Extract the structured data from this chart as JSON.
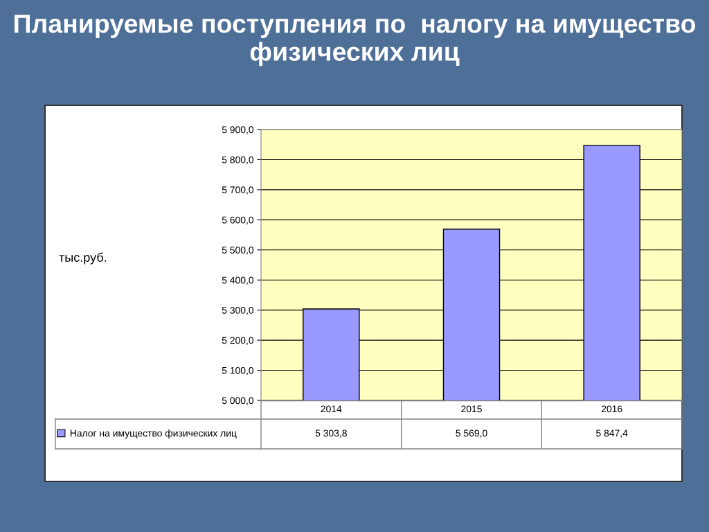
{
  "chart_data": {
    "type": "bar",
    "title": "Планируемые поступления по  налогу на имущество физических лиц",
    "annotations": [
      "тыс.руб."
    ],
    "categories": [
      "2014",
      "2015",
      "2016"
    ],
    "series": [
      {
        "name": "Налог на имущество физических лиц",
        "color": "#9999ff",
        "values": [
          5303.8,
          5569.0,
          5847.4
        ]
      }
    ],
    "value_labels": [
      "5 303,8",
      "5 569,0",
      "5 847,4"
    ],
    "ylim": [
      5000,
      5900
    ],
    "yticks": [
      {
        "value": 5000,
        "label": "5 000,0"
      },
      {
        "value": 5100,
        "label": "5 100,0"
      },
      {
        "value": 5200,
        "label": "5 200,0"
      },
      {
        "value": 5300,
        "label": "5 300,0"
      },
      {
        "value": 5400,
        "label": "5 400,0"
      },
      {
        "value": 5500,
        "label": "5 500,0"
      },
      {
        "value": 5600,
        "label": "5 600,0"
      },
      {
        "value": 5700,
        "label": "5 700,0"
      },
      {
        "value": 5800,
        "label": "5 800,0"
      },
      {
        "value": 5900,
        "label": "5 900,0"
      }
    ],
    "grid": "y",
    "legend": "bottom left"
  }
}
